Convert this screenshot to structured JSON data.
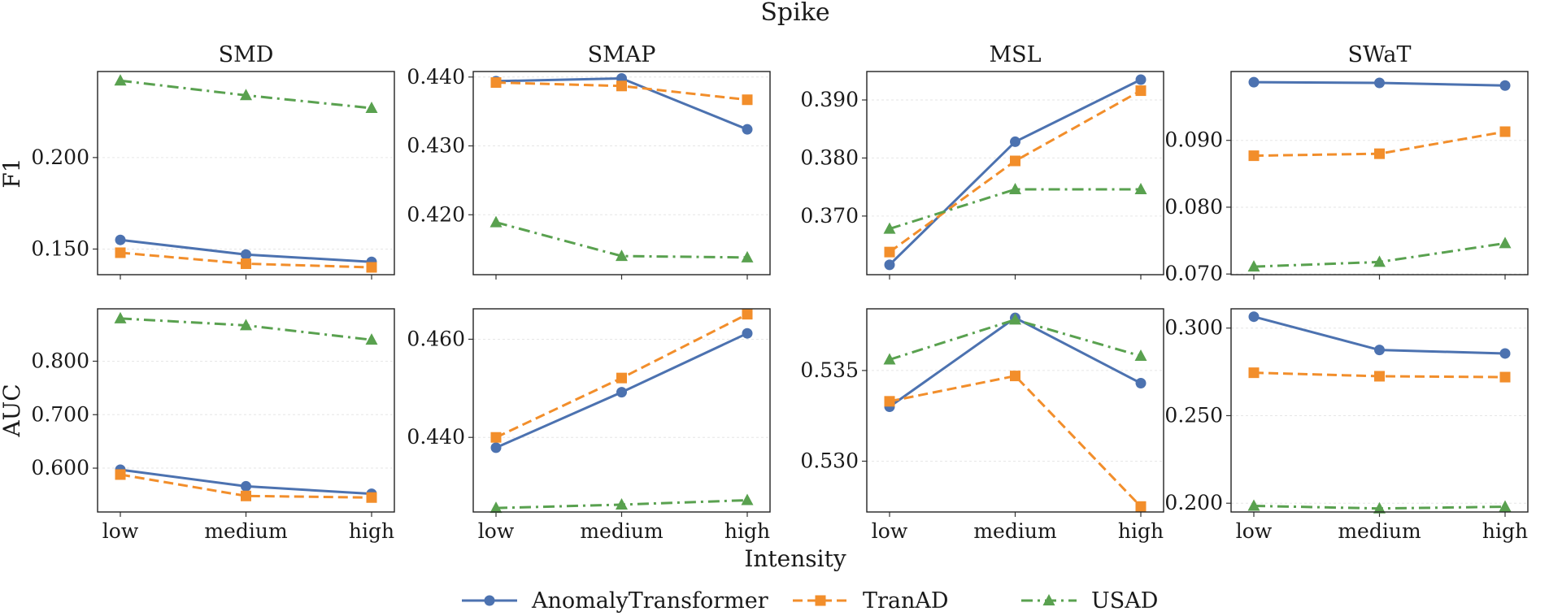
{
  "title": "Spike",
  "xlabel": "Intensity",
  "legend": [
    {
      "name": "AnomalyTransformer",
      "color": "#4c72b0",
      "marker": "circle",
      "dash": "solid"
    },
    {
      "name": "TranAD",
      "color": "#f28e2b",
      "marker": "square",
      "dash": "dashed"
    },
    {
      "name": "USAD",
      "color": "#59a14f",
      "marker": "triangle",
      "dash": "dashdot"
    }
  ],
  "chart_data": [
    {
      "type": "line",
      "row": "F1",
      "dataset": "SMD",
      "title": "SMD",
      "ylabel": "F1",
      "categories": [
        "low",
        "medium",
        "high"
      ],
      "ylim": [
        0.136,
        0.247
      ],
      "yticks": [
        "0.150",
        "0.200"
      ],
      "yticks_values": [
        0.15,
        0.2
      ],
      "series": [
        {
          "name": "AnomalyTransformer",
          "values": [
            0.155,
            0.147,
            0.143
          ]
        },
        {
          "name": "TranAD",
          "values": [
            0.148,
            0.142,
            0.14
          ]
        },
        {
          "name": "USAD",
          "values": [
            0.242,
            0.234,
            0.227
          ]
        }
      ]
    },
    {
      "type": "line",
      "row": "F1",
      "dataset": "SMAP",
      "title": "SMAP",
      "ylabel": "F1",
      "categories": [
        "low",
        "medium",
        "high"
      ],
      "ylim": [
        0.4113,
        0.4408
      ],
      "yticks": [
        "0.420",
        "0.430",
        "0.440"
      ],
      "yticks_values": [
        0.42,
        0.43,
        0.44
      ],
      "series": [
        {
          "name": "AnomalyTransformer",
          "values": [
            0.4394,
            0.4398,
            0.4324
          ]
        },
        {
          "name": "TranAD",
          "values": [
            0.4392,
            0.4387,
            0.4367
          ]
        },
        {
          "name": "USAD",
          "values": [
            0.4189,
            0.414,
            0.4138
          ]
        }
      ]
    },
    {
      "type": "line",
      "row": "F1",
      "dataset": "MSL",
      "title": "MSL",
      "ylabel": "F1",
      "categories": [
        "low",
        "medium",
        "high"
      ],
      "ylim": [
        0.3599,
        0.3949
      ],
      "yticks": [
        "0.370",
        "0.380",
        "0.390"
      ],
      "yticks_values": [
        0.37,
        0.38,
        0.39
      ],
      "series": [
        {
          "name": "AnomalyTransformer",
          "values": [
            0.3616,
            0.3828,
            0.3935
          ]
        },
        {
          "name": "TranAD",
          "values": [
            0.3638,
            0.3795,
            0.3916
          ]
        },
        {
          "name": "USAD",
          "values": [
            0.3678,
            0.3746,
            0.3746
          ]
        }
      ]
    },
    {
      "type": "line",
      "row": "F1",
      "dataset": "SWaT",
      "title": "SWaT",
      "ylabel": "F1",
      "categories": [
        "low",
        "medium",
        "high"
      ],
      "ylim": [
        0.0699,
        0.1003
      ],
      "yticks": [
        "0.070",
        "0.080",
        "0.090"
      ],
      "yticks_values": [
        0.07,
        0.08,
        0.09
      ],
      "series": [
        {
          "name": "AnomalyTransformer",
          "values": [
            0.0987,
            0.0986,
            0.0982
          ]
        },
        {
          "name": "TranAD",
          "values": [
            0.0877,
            0.088,
            0.0913
          ]
        },
        {
          "name": "USAD",
          "values": [
            0.0711,
            0.0718,
            0.0746
          ]
        }
      ]
    },
    {
      "type": "line",
      "row": "AUC",
      "dataset": "SMD",
      "title": "",
      "ylabel": "AUC",
      "categories": [
        "low",
        "medium",
        "high"
      ],
      "ylim": [
        0.518,
        0.898
      ],
      "yticks": [
        "0.600",
        "0.700",
        "0.800"
      ],
      "yticks_values": [
        0.6,
        0.7,
        0.8
      ],
      "series": [
        {
          "name": "AnomalyTransformer",
          "values": [
            0.597,
            0.566,
            0.552
          ]
        },
        {
          "name": "TranAD",
          "values": [
            0.588,
            0.548,
            0.545
          ]
        },
        {
          "name": "USAD",
          "values": [
            0.88,
            0.867,
            0.84
          ]
        }
      ]
    },
    {
      "type": "line",
      "row": "AUC",
      "dataset": "SMAP",
      "title": "",
      "ylabel": "AUC",
      "categories": [
        "low",
        "medium",
        "high"
      ],
      "ylim": [
        0.4248,
        0.4662
      ],
      "yticks": [
        "0.440",
        "0.460"
      ],
      "yticks_values": [
        0.44,
        0.46
      ],
      "series": [
        {
          "name": "AnomalyTransformer",
          "values": [
            0.4379,
            0.4492,
            0.4612
          ]
        },
        {
          "name": "TranAD",
          "values": [
            0.44,
            0.4521,
            0.4651
          ]
        },
        {
          "name": "USAD",
          "values": [
            0.4256,
            0.4263,
            0.4272
          ]
        }
      ]
    },
    {
      "type": "line",
      "row": "AUC",
      "dataset": "MSL",
      "title": "",
      "ylabel": "AUC",
      "categories": [
        "low",
        "medium",
        "high"
      ],
      "ylim": [
        0.5272,
        0.5384
      ],
      "yticks": [
        "0.530",
        "0.535"
      ],
      "yticks_values": [
        0.53,
        0.535
      ],
      "series": [
        {
          "name": "AnomalyTransformer",
          "values": [
            0.533,
            0.5379,
            0.5343
          ]
        },
        {
          "name": "TranAD",
          "values": [
            0.5333,
            0.5347,
            0.5275
          ]
        },
        {
          "name": "USAD",
          "values": [
            0.5356,
            0.5378,
            0.5358
          ]
        }
      ]
    },
    {
      "type": "line",
      "row": "AUC",
      "dataset": "SWaT",
      "title": "",
      "ylabel": "AUC",
      "categories": [
        "low",
        "medium",
        "high"
      ],
      "ylim": [
        0.195,
        0.311
      ],
      "yticks": [
        "0.200",
        "0.250",
        "0.300"
      ],
      "yticks_values": [
        0.2,
        0.25,
        0.3
      ],
      "series": [
        {
          "name": "AnomalyTransformer",
          "values": [
            0.3065,
            0.2875,
            0.2855
          ]
        },
        {
          "name": "TranAD",
          "values": [
            0.2745,
            0.2725,
            0.272
          ]
        },
        {
          "name": "USAD",
          "values": [
            0.1985,
            0.197,
            0.198
          ]
        }
      ]
    }
  ]
}
